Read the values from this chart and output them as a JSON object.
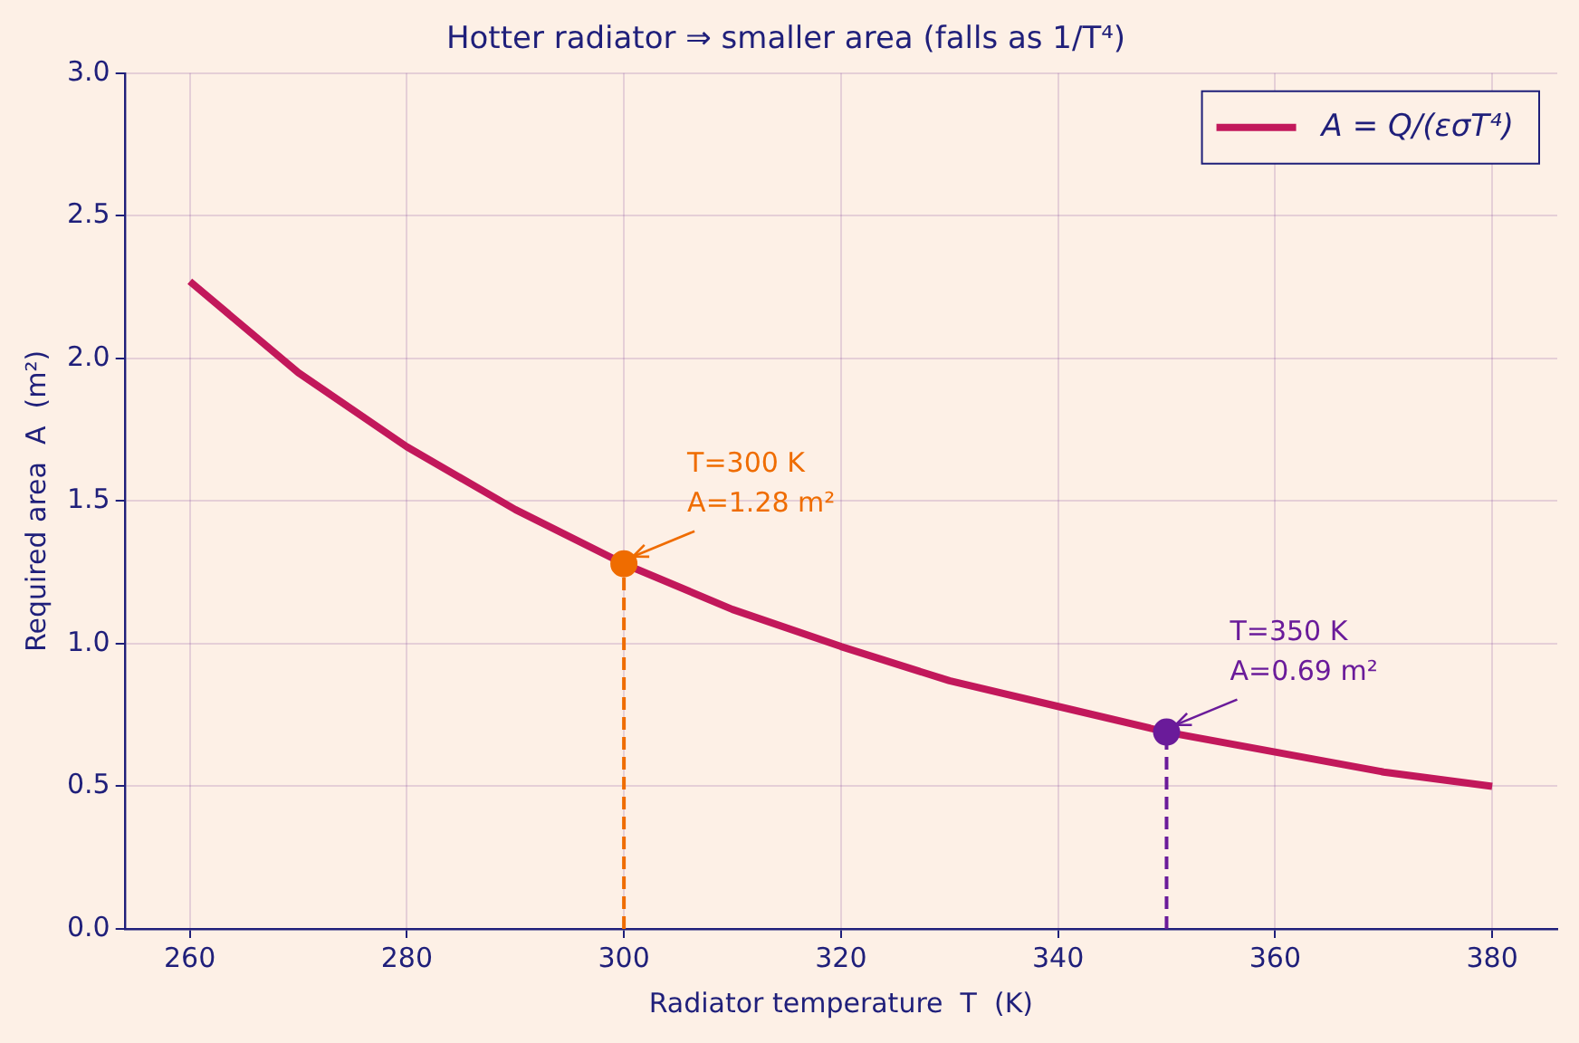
{
  "chart_data": {
    "type": "line",
    "title": "Hotter radiator ⇒ smaller area (falls as 1/T⁴)",
    "xlabel": "Radiator temperature  T  (K)",
    "ylabel": "Required area  A  (m²)",
    "xlim": [
      254,
      386
    ],
    "xticks": [
      260,
      280,
      300,
      320,
      340,
      360,
      380
    ],
    "ylim": [
      0,
      3
    ],
    "yticks": [
      {
        "value": 0,
        "label": "0.0"
      },
      0.5,
      {
        "value": 1,
        "label": "1.0"
      },
      1.5,
      {
        "value": 2,
        "label": "2.0"
      },
      2.5,
      {
        "value": 3,
        "label": "3.0"
      }
    ],
    "grid": true,
    "legend": "top right",
    "series": [
      {
        "name": "A = Q/(εσT⁴)",
        "color": "#c2185b",
        "x": [
          260,
          270,
          280,
          290,
          300,
          310,
          320,
          330,
          340,
          350,
          360,
          370,
          380
        ],
        "values": [
          2.27,
          1.95,
          1.69,
          1.47,
          1.28,
          1.12,
          0.99,
          0.87,
          0.78,
          0.69,
          0.62,
          0.55,
          0.5
        ]
      },
      {
        "type": "line",
        "line_style": "dashed",
        "color": "#ef6c00",
        "x": [
          300,
          300
        ],
        "values": [
          0,
          1.28
        ]
      },
      {
        "type": "line",
        "line_style": "dashed",
        "color": "#6a1b9a",
        "x": [
          350,
          350
        ],
        "values": [
          0,
          0.69
        ]
      },
      {
        "type": "scatter",
        "marker": "circle",
        "color": "#ef6c00",
        "x": [
          300
        ],
        "values": [
          1.28
        ]
      },
      {
        "type": "scatter",
        "marker": "circle",
        "color": "#6a1b9a",
        "x": [
          350
        ],
        "values": [
          0.69
        ]
      }
    ],
    "annotations": [
      {
        "text": "T=300 K\nA=1.28 m²",
        "x": 300,
        "y": 1.28
      },
      {
        "text": "T=350 K\nA=0.69 m²",
        "x": 350,
        "y": 0.69
      }
    ]
  }
}
